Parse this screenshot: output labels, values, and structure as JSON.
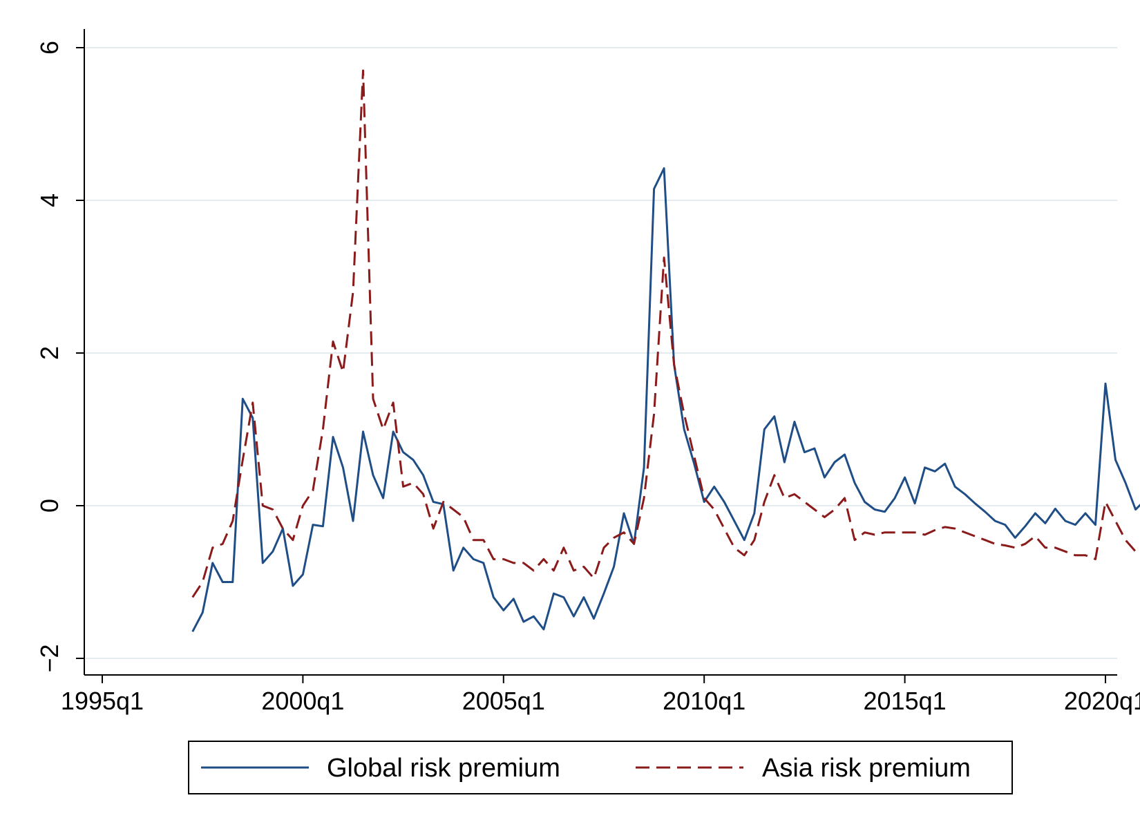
{
  "chart_data": {
    "type": "line",
    "title": "",
    "xlabel": "",
    "ylabel": "",
    "xlim": [
      1995.0,
      2021.5
    ],
    "ylim": [
      -2.5,
      6.5
    ],
    "grid": true,
    "legend_position": "bottom",
    "x_ticks": [
      {
        "value": 1995.0,
        "label": "1995q1"
      },
      {
        "value": 2000.0,
        "label": "2000q1"
      },
      {
        "value": 2005.0,
        "label": "2005q1"
      },
      {
        "value": 2010.0,
        "label": "2010q1"
      },
      {
        "value": 2015.0,
        "label": "2015q1"
      },
      {
        "value": 2020.0,
        "label": "2020q1"
      }
    ],
    "y_ticks": [
      {
        "value": -2,
        "label": "−2"
      },
      {
        "value": 0,
        "label": "0"
      },
      {
        "value": 2,
        "label": "2"
      },
      {
        "value": 4,
        "label": "4"
      },
      {
        "value": 6,
        "label": "6"
      }
    ],
    "series": [
      {
        "name": "Global risk premium",
        "color": "#1f4e87",
        "dash": "solid",
        "x": [
          1997.25,
          1997.5,
          1997.75,
          1998.0,
          1998.25,
          1998.5,
          1998.75,
          1999.0,
          1999.25,
          1999.5,
          1999.75,
          2000.0,
          2000.25,
          2000.5,
          2000.75,
          2001.0,
          2001.25,
          2001.5,
          2001.75,
          2002.0,
          2002.25,
          2002.5,
          2002.75,
          2003.0,
          2003.25,
          2003.5,
          2003.75,
          2004.0,
          2004.25,
          2004.5,
          2004.75,
          2005.0,
          2005.25,
          2005.5,
          2005.75,
          2006.0,
          2006.25,
          2006.5,
          2006.75,
          2007.0,
          2007.25,
          2007.5,
          2007.75,
          2008.0,
          2008.25,
          2008.5,
          2008.75,
          2009.0,
          2009.25,
          2009.5,
          2009.75,
          2010.0,
          2010.25,
          2010.5,
          2010.75,
          2011.0,
          2011.25,
          2011.5,
          2011.75,
          2012.0,
          2012.25,
          2012.5,
          2012.75,
          2013.0,
          2013.25,
          2013.5,
          2013.75,
          2014.0,
          2014.25,
          2014.5,
          2014.75,
          2015.0,
          2015.25,
          2015.5,
          2015.75,
          2016.0,
          2016.25,
          2016.5,
          2016.75,
          2017.0,
          2017.25,
          2017.5,
          2017.75,
          2018.0,
          2018.25,
          2018.5,
          2018.75,
          2019.0,
          2019.25,
          2019.5,
          2019.75,
          2020.0,
          2020.25,
          2020.5,
          2020.75,
          2021.0
        ],
        "values": [
          -1.65,
          -1.4,
          -0.75,
          -1.0,
          -1.0,
          1.4,
          1.15,
          -0.75,
          -0.6,
          -0.3,
          -1.05,
          -0.9,
          -0.25,
          -0.27,
          0.9,
          0.5,
          -0.2,
          0.97,
          0.4,
          0.1,
          0.97,
          0.7,
          0.6,
          0.4,
          0.05,
          0.02,
          -0.85,
          -0.55,
          -0.7,
          -0.75,
          -1.2,
          -1.37,
          -1.22,
          -1.52,
          -1.45,
          -1.62,
          -1.15,
          -1.2,
          -1.45,
          -1.2,
          -1.48,
          -1.15,
          -0.8,
          -0.1,
          -0.5,
          0.5,
          4.15,
          4.42,
          1.85,
          1.0,
          0.55,
          0.05,
          0.25,
          0.05,
          -0.2,
          -0.45,
          -0.1,
          1.0,
          1.17,
          0.57,
          1.1,
          0.7,
          0.75,
          0.37,
          0.57,
          0.67,
          0.3,
          0.05,
          -0.05,
          -0.08,
          0.1,
          0.37,
          0.03,
          0.5,
          0.45,
          0.55,
          0.25,
          0.15,
          0.03,
          -0.08,
          -0.2,
          -0.25,
          -0.42,
          -0.27,
          -0.1,
          -0.23,
          -0.04,
          -0.2,
          -0.25,
          -0.1,
          -0.25,
          1.6,
          0.6,
          0.3,
          -0.05,
          0.08
        ]
      },
      {
        "name": "Asia risk premium",
        "color": "#8b1a1a",
        "dash": "dashed",
        "x": [
          1997.25,
          1997.5,
          1997.75,
          1998.0,
          1998.25,
          1998.5,
          1998.75,
          1999.0,
          1999.25,
          1999.5,
          1999.75,
          2000.0,
          2000.25,
          2000.5,
          2000.75,
          2001.0,
          2001.25,
          2001.5,
          2001.75,
          2002.0,
          2002.25,
          2002.5,
          2002.75,
          2003.0,
          2003.25,
          2003.5,
          2003.75,
          2004.0,
          2004.25,
          2004.5,
          2004.75,
          2005.0,
          2005.25,
          2005.5,
          2005.75,
          2006.0,
          2006.25,
          2006.5,
          2006.75,
          2007.0,
          2007.25,
          2007.5,
          2007.75,
          2008.0,
          2008.25,
          2008.5,
          2008.75,
          2009.0,
          2009.25,
          2009.5,
          2009.75,
          2010.0,
          2010.25,
          2010.5,
          2010.75,
          2011.0,
          2011.25,
          2011.5,
          2011.75,
          2012.0,
          2012.25,
          2012.5,
          2012.75,
          2013.0,
          2013.25,
          2013.5,
          2013.75,
          2014.0,
          2014.25,
          2014.5,
          2014.75,
          2015.0,
          2015.25,
          2015.5,
          2015.75,
          2016.0,
          2016.25,
          2016.5,
          2016.75,
          2017.0,
          2017.25,
          2017.5,
          2017.75,
          2018.0,
          2018.25,
          2018.5,
          2018.75,
          2019.0,
          2019.25,
          2019.5,
          2019.75,
          2020.0,
          2020.25,
          2020.5,
          2020.75,
          2021.0
        ],
        "values": [
          -1.2,
          -1.0,
          -0.55,
          -0.5,
          -0.2,
          0.6,
          1.35,
          0.0,
          -0.05,
          -0.3,
          -0.45,
          0.0,
          0.2,
          1.0,
          2.15,
          1.75,
          2.8,
          5.7,
          1.4,
          1.0,
          1.35,
          0.25,
          0.3,
          0.15,
          -0.3,
          0.05,
          -0.05,
          -0.15,
          -0.45,
          -0.45,
          -0.7,
          -0.7,
          -0.75,
          -0.75,
          -0.85,
          -0.7,
          -0.85,
          -0.55,
          -0.85,
          -0.8,
          -0.95,
          -0.55,
          -0.42,
          -0.35,
          -0.5,
          0.1,
          1.2,
          3.25,
          1.85,
          1.2,
          0.65,
          0.1,
          -0.05,
          -0.3,
          -0.55,
          -0.65,
          -0.45,
          0.05,
          0.4,
          0.1,
          0.15,
          0.05,
          -0.05,
          -0.15,
          -0.05,
          0.1,
          -0.45,
          -0.35,
          -0.38,
          -0.35,
          -0.35,
          -0.35,
          -0.35,
          -0.38,
          -0.32,
          -0.28,
          -0.3,
          -0.35,
          -0.4,
          -0.45,
          -0.5,
          -0.52,
          -0.55,
          -0.5,
          -0.4,
          -0.55,
          -0.55,
          -0.6,
          -0.65,
          -0.65,
          -0.7,
          0.05,
          -0.2,
          -0.45,
          -0.6,
          -0.6
        ]
      }
    ],
    "legend": [
      "Global risk premium",
      "Asia risk premium"
    ]
  }
}
